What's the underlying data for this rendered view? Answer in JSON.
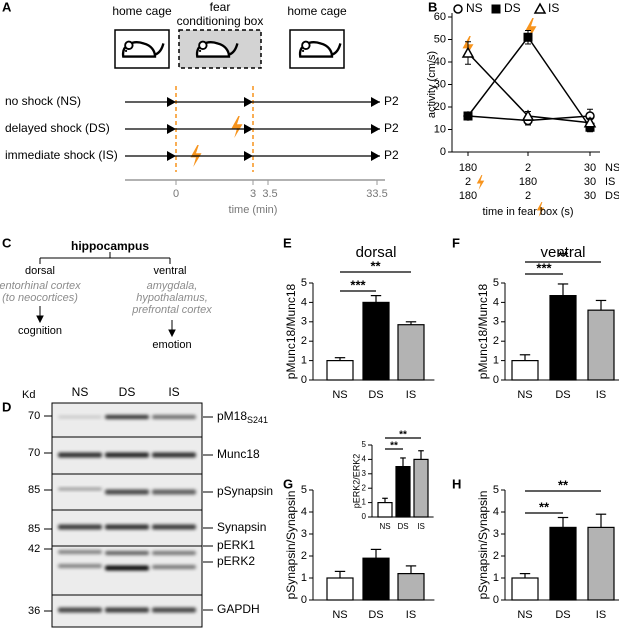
{
  "panel_labels": [
    "A",
    "B",
    "C",
    "D",
    "E",
    "F",
    "G",
    "H"
  ],
  "panel_a": {
    "boxes": [
      [
        "home cage"
      ],
      [
        "fear",
        "conditioning box"
      ],
      [
        "home cage"
      ]
    ],
    "rows": [
      "no shock (NS)",
      "delayed shock (DS)",
      "immediate shock (IS)"
    ],
    "end_label": "P2",
    "time_ticks": [
      "0",
      "3",
      "3.5",
      "33.5"
    ],
    "time_label": "time (min)"
  },
  "panel_c": {
    "title": "hippocampus",
    "left": "dorsal",
    "right": "ventral",
    "left_targets": [
      "entorhinal cortex",
      "(to neocortices)"
    ],
    "right_targets": [
      "amygdala,",
      "hypothalamus,",
      "prefrontal cortex"
    ],
    "left_outcome": "cognition",
    "right_outcome": "emotion"
  },
  "panel_d": {
    "unit": "Kd",
    "columns": [
      "NS",
      "DS",
      "IS"
    ],
    "rows": [
      {
        "marker": 70,
        "label": "pM18",
        "subscript": "S241"
      },
      {
        "marker": 70,
        "label": "Munc18"
      },
      {
        "marker": 85,
        "label": "pSynapsin"
      },
      {
        "marker": 85,
        "label": "Synapsin"
      },
      {
        "marker": 42,
        "label": "pERK1"
      },
      {
        "label": "pERK2"
      },
      {
        "marker": 36,
        "label": "GAPDH"
      }
    ]
  },
  "chart_data": [
    {
      "type": "line",
      "y_label": "activity (cm/s)",
      "x_label": "time in fear box (s)",
      "x_label_rows": [
        {
          "name": "NS",
          "labels": [
            "180",
            "2",
            "30"
          ]
        },
        {
          "name": "IS",
          "labels": [
            "2",
            "180",
            "30"
          ]
        },
        {
          "name": "DS",
          "labels": [
            "180",
            "2",
            "30"
          ]
        }
      ],
      "ylim": [
        0,
        60
      ],
      "yticks": [
        0,
        10,
        20,
        30,
        40,
        50,
        60
      ],
      "legend": "top",
      "series": [
        {
          "name": "NS",
          "marker": "open-circle",
          "color": "#000000",
          "values": [
            16,
            14,
            16
          ],
          "errors": [
            1,
            2,
            3
          ]
        },
        {
          "name": "DS",
          "marker": "square",
          "color": "#000000",
          "values": [
            16,
            51,
            11
          ],
          "errors": [
            1,
            3,
            2
          ]
        },
        {
          "name": "IS",
          "marker": "open-triangle",
          "color": "#000000",
          "values": [
            44,
            16,
            13
          ],
          "errors": [
            5,
            2,
            2
          ]
        }
      ]
    },
    {
      "type": "bar",
      "title": "dorsal",
      "y_label": "pMunc18/Munc18",
      "categories": [
        "NS",
        "DS",
        "IS"
      ],
      "values": [
        1,
        4,
        2.85
      ],
      "errors": [
        0.15,
        0.35,
        0.15
      ],
      "colors": [
        "#ffffff",
        "#000000",
        "#b3b3b3"
      ],
      "ylim": [
        0,
        5
      ],
      "yticks": [
        0,
        1,
        2,
        3,
        4,
        5
      ],
      "significance": [
        "***",
        "**"
      ]
    },
    {
      "type": "bar",
      "title": "ventral",
      "y_label": "pMunc18/Munc18",
      "categories": [
        "NS",
        "DS",
        "IS"
      ],
      "values": [
        1,
        4.35,
        3.6
      ],
      "errors": [
        0.3,
        0.6,
        0.5
      ],
      "colors": [
        "#ffffff",
        "#000000",
        "#b3b3b3"
      ],
      "ylim": [
        0,
        5
      ],
      "yticks": [
        0,
        1,
        2,
        3,
        4,
        5
      ],
      "significance": [
        "***",
        "**"
      ]
    },
    {
      "type": "bar",
      "y_label": "pSynapsin/Synapsin",
      "categories": [
        "NS",
        "DS",
        "IS"
      ],
      "values": [
        1,
        1.9,
        1.2
      ],
      "errors": [
        0.3,
        0.4,
        0.35
      ],
      "colors": [
        "#ffffff",
        "#000000",
        "#b3b3b3"
      ],
      "ylim": [
        0,
        5
      ],
      "yticks": [
        0,
        1,
        2,
        3,
        4,
        5
      ]
    },
    {
      "type": "bar",
      "y_label": "pERK2/ERK2",
      "categories": [
        "NS",
        "DS",
        "IS"
      ],
      "values": [
        1,
        3.5,
        4
      ],
      "errors": [
        0.3,
        0.6,
        0.6
      ],
      "colors": [
        "#ffffff",
        "#000000",
        "#b3b3b3"
      ],
      "ylim": [
        0,
        5
      ],
      "yticks": [
        0,
        1,
        2,
        3,
        4,
        5
      ],
      "significance": [
        "**",
        "**"
      ]
    },
    {
      "type": "bar",
      "y_label": "pSynapsin/Synapsin",
      "categories": [
        "NS",
        "DS",
        "IS"
      ],
      "values": [
        1,
        3.3,
        3.3
      ],
      "errors": [
        0.2,
        0.45,
        0.6
      ],
      "colors": [
        "#ffffff",
        "#000000",
        "#b3b3b3"
      ],
      "ylim": [
        0,
        5
      ],
      "yticks": [
        0,
        1,
        2,
        3,
        4,
        5
      ],
      "significance": [
        "**",
        "**"
      ]
    }
  ]
}
